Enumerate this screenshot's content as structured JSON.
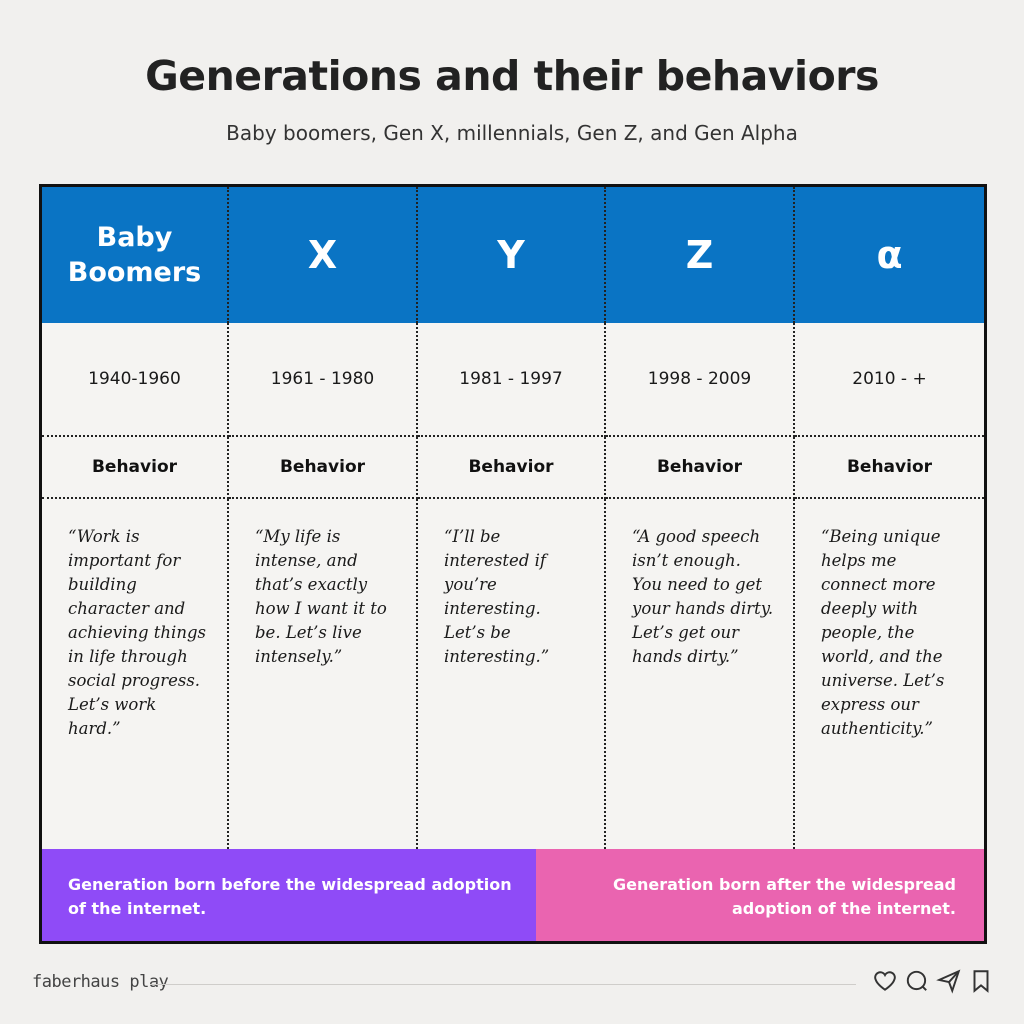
{
  "title": "Generations and their behaviors",
  "subtitle": "Baby boomers, Gen X, millennials, Gen Z, and Gen Alpha",
  "generations": [
    {
      "name": "Baby\nBoomers",
      "years": "1940-1960",
      "behavior_label": "Behavior",
      "quote": "“Work is important for building character and achieving things in life through social progress. Let’s work hard.”"
    },
    {
      "name": "X",
      "years": "1961 - 1980",
      "behavior_label": "Behavior",
      "quote": "“My life is intense, and that’s exactly how I want it to be. Let’s live intensely.”"
    },
    {
      "name": "Y",
      "years": "1981 - 1997",
      "behavior_label": "Behavior",
      "quote": "“I’ll be interested if you’re interesting. Let’s be interesting.”"
    },
    {
      "name": "Z",
      "years": "1998 - 2009",
      "behavior_label": "Behavior",
      "quote": "“A good speech isn’t enough. You need to get your hands dirty. Let’s get our hands dirty.”"
    },
    {
      "name": "α",
      "years": "2010 - +",
      "behavior_label": "Behavior",
      "quote": "“Being unique helps me connect more deeply with people, the world, and the universe. Let’s express our authenticity.”"
    }
  ],
  "footer": {
    "left": "Generation born before the widespread adoption of the internet.",
    "right": "Generation born after the widespread adoption of the internet."
  },
  "brand": "faberhaus play",
  "icons": [
    "heart-icon",
    "comment-icon",
    "send-icon",
    "bookmark-icon"
  ],
  "colors": {
    "header": "#0a74c4",
    "before": "#8f4bf7",
    "after": "#ea64b0"
  }
}
